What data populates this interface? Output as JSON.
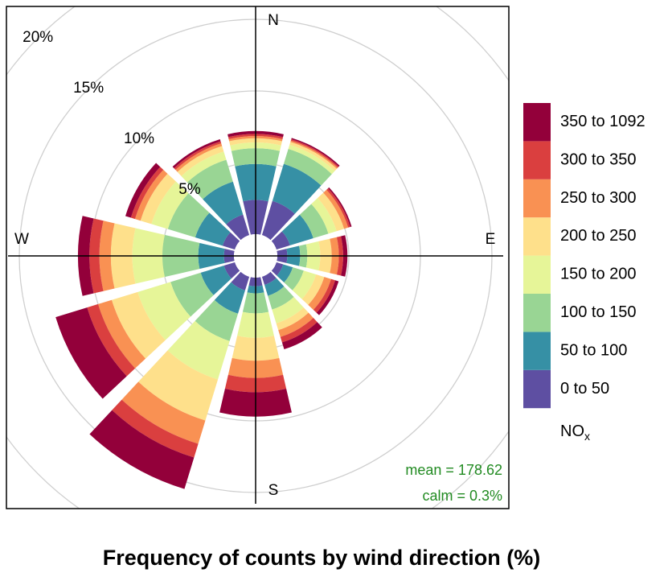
{
  "chart_data": {
    "type": "rose",
    "title": "Frequency of counts by wind direction (%)",
    "x": [
      0,
      30,
      60,
      90,
      120,
      150,
      180,
      210,
      240,
      270,
      300,
      330
    ],
    "compass": [
      "N",
      "E",
      "S",
      "W"
    ],
    "rlim": [
      0,
      20
    ],
    "rticks": [
      {
        "value": 5,
        "label": "5%"
      },
      {
        "value": 10,
        "label": "10%"
      },
      {
        "value": 15,
        "label": "15%"
      },
      {
        "value": 20,
        "label": "20%"
      }
    ],
    "grid": true,
    "legend_title": {
      "main": "NO",
      "sub": "x"
    },
    "legend_position": "right",
    "series": [
      {
        "name": "0 to 50",
        "color": "#5E4FA2",
        "values": [
          2.4,
          2.5,
          1.0,
          0.7,
          0.5,
          0.6,
          0.6,
          1.0,
          0.8,
          0.7,
          0.9,
          1.5
        ]
      },
      {
        "name": "50 to 100",
        "color": "#3690A5",
        "values": [
          2.5,
          2.7,
          1.7,
          0.9,
          0.7,
          0.8,
          0.5,
          1.7,
          1.7,
          1.8,
          2.0,
          2.4
        ]
      },
      {
        "name": "100 to 150",
        "color": "#99D594",
        "values": [
          1.1,
          1.1,
          1.1,
          0.5,
          0.8,
          1.0,
          1.4,
          2.0,
          2.2,
          2.5,
          2.0,
          1.6
        ]
      },
      {
        "name": "150 to 200",
        "color": "#E6F598",
        "values": [
          0.4,
          0.3,
          0.6,
          0.9,
          0.9,
          1.0,
          1.7,
          2.8,
          2.4,
          2.1,
          1.2,
          0.6
        ]
      },
      {
        "name": "200 to 250",
        "color": "#FEE08B",
        "values": [
          0.3,
          0.2,
          0.55,
          0.8,
          0.6,
          0.5,
          1.6,
          3.0,
          1.9,
          1.5,
          0.8,
          0.4
        ]
      },
      {
        "name": "250 to 300",
        "color": "#F99153",
        "values": [
          0.15,
          0.1,
          0.3,
          0.5,
          0.5,
          0.5,
          1.2,
          1.7,
          1.0,
          0.8,
          0.4,
          0.2
        ]
      },
      {
        "name": "300 to 350",
        "color": "#DA3F3F",
        "values": [
          0.15,
          0.1,
          0.15,
          0.3,
          0.3,
          0.4,
          1.0,
          1.0,
          0.8,
          0.7,
          0.3,
          0.15
        ]
      },
      {
        "name": "350 to 1092",
        "color": "#93003A",
        "values": [
          0.2,
          0.1,
          0.1,
          0.3,
          0.25,
          0.5,
          1.7,
          2.3,
          2.3,
          0.8,
          0.4,
          0.15
        ]
      }
    ],
    "annotations": [
      "mean = 178.62",
      "calm = 0.3%"
    ]
  }
}
